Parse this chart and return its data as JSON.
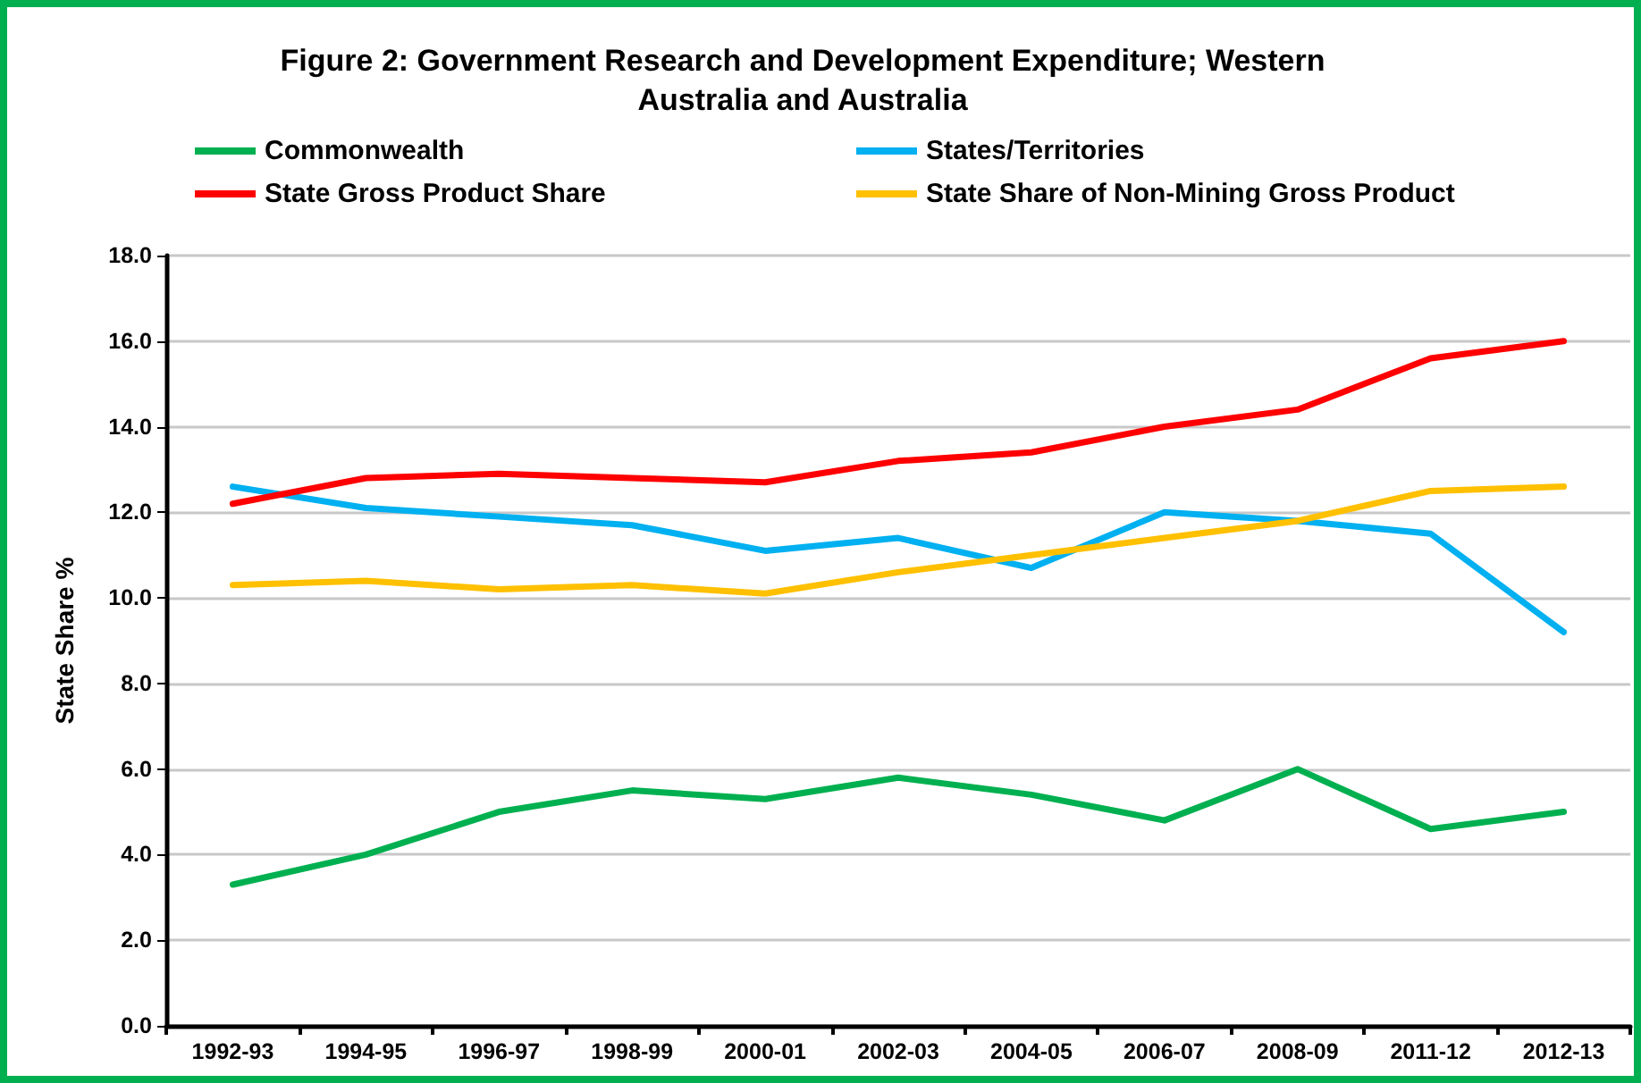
{
  "chart_data": {
    "type": "line",
    "title": "Figure 2: Government Research and Development Expenditure; Western\nAustralia and Australia",
    "ylabel": "State Share %",
    "categories": [
      "1992-93",
      "1994-95",
      "1996-97",
      "1998-99",
      "2000-01",
      "2002-03",
      "2004-05",
      "2006-07",
      "2008-09",
      "2011-12",
      "2012-13"
    ],
    "series": [
      {
        "name": "Commonwealth",
        "color": "#00b050",
        "values": [
          3.3,
          4.0,
          5.0,
          5.5,
          5.3,
          5.8,
          5.4,
          4.8,
          6.0,
          4.6,
          5.0
        ]
      },
      {
        "name": "States/Territories",
        "color": "#00b0f0",
        "values": [
          12.6,
          12.1,
          11.9,
          11.7,
          11.1,
          11.4,
          10.7,
          12.0,
          11.8,
          11.5,
          9.2
        ]
      },
      {
        "name": "State Gross Product Share",
        "color": "#ff0000",
        "values": [
          12.2,
          12.8,
          12.9,
          12.8,
          12.7,
          13.2,
          13.4,
          14.0,
          14.4,
          15.6,
          16.0
        ]
      },
      {
        "name": "State Share of Non-Mining Gross Product",
        "color": "#ffc000",
        "values": [
          10.3,
          10.4,
          10.2,
          10.3,
          10.1,
          10.6,
          11.0,
          11.4,
          11.8,
          12.5,
          12.6
        ]
      }
    ],
    "ylim": [
      0,
      18
    ],
    "yticks": [
      {
        "value": 0,
        "label": "0.0"
      },
      {
        "value": 2,
        "label": "2.0"
      },
      {
        "value": 4,
        "label": "4.0"
      },
      {
        "value": 6,
        "label": "6.0"
      },
      {
        "value": 8,
        "label": "8.0"
      },
      {
        "value": 10,
        "label": "10.0"
      },
      {
        "value": 12,
        "label": "12.0"
      },
      {
        "value": 14,
        "label": "14.0"
      },
      {
        "value": 16,
        "label": "16.0"
      },
      {
        "value": 18,
        "label": "18.0"
      }
    ],
    "grid": "y",
    "legend": "top",
    "marker": "none",
    "line_style": "solid"
  }
}
